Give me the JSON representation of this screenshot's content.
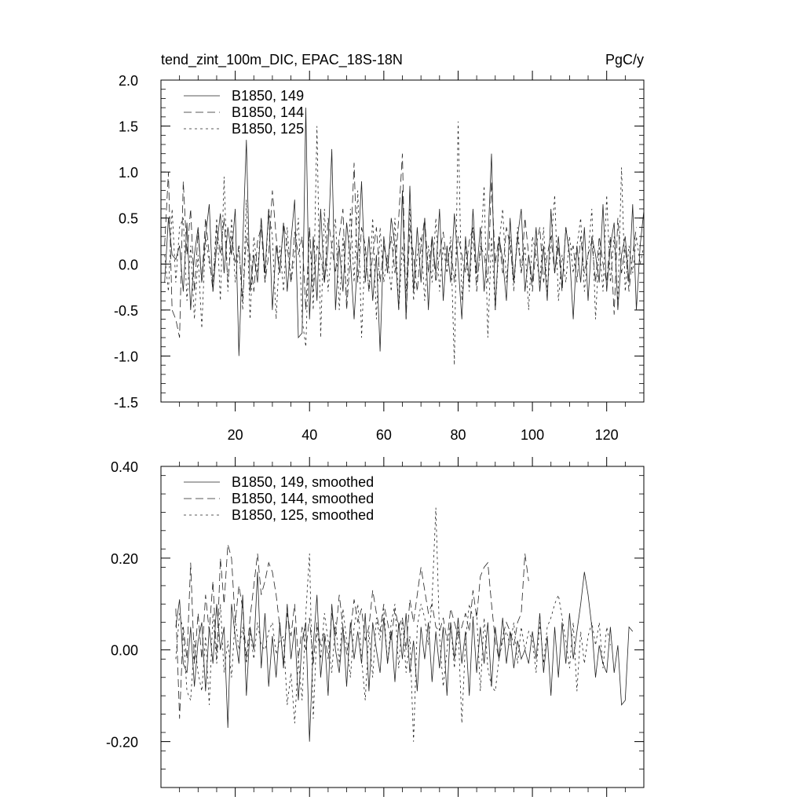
{
  "chart_data": [
    {
      "type": "line",
      "title": "tend_zint_100m_DIC, EPAC_18S-18N",
      "units": "PgC/y",
      "xlim": [
        0,
        130
      ],
      "ylim": [
        -1.5,
        2.0
      ],
      "x_ticks": [
        20,
        40,
        60,
        80,
        100,
        120
      ],
      "y_ticks": [
        -1.5,
        -1.0,
        -0.5,
        0.0,
        0.5,
        1.0,
        1.5,
        2.0
      ],
      "y_tick_labels": [
        "-1.5",
        "-1.0",
        "-0.5",
        "0.0",
        "0.5",
        "1.0",
        "1.5",
        "2.0"
      ],
      "grid": false,
      "legend": "top-left",
      "x_start": 1,
      "series": [
        {
          "name": "B1850, 149",
          "dash": "solid",
          "values": [
            -0.2,
            0.5,
            0.1,
            0.05,
            0.2,
            -0.3,
            0.45,
            -0.5,
            0.1,
            0.4,
            -0.2,
            0.3,
            0.65,
            -0.3,
            0.2,
            0.55,
            -0.1,
            0.4,
            0.1,
            0.6,
            -1.0,
            0.2,
            1.35,
            -0.3,
            0.1,
            -0.2,
            0.5,
            -0.1,
            0.6,
            -0.5,
            0.2,
            -0.1,
            0.45,
            -0.3,
            0.25,
            0.7,
            -0.8,
            -0.75,
            1.7,
            -0.6,
            0.3,
            -0.4,
            0.6,
            -0.2,
            0.2,
            1.25,
            -0.5,
            0.2,
            -0.3,
            0.45,
            0.05,
            -0.6,
            0.1,
            0.9,
            -0.2,
            0.3,
            -0.4,
            0.1,
            -0.95,
            0.3,
            -0.1,
            0.5,
            0.2,
            -0.5,
            0.8,
            -0.6,
            0.85,
            -0.3,
            0.4,
            -0.2,
            0.5,
            -0.5,
            0.3,
            -0.1,
            0.6,
            -0.4,
            0.2,
            -0.2,
            0.55,
            0.0,
            -0.6,
            0.3,
            -0.2,
            0.6,
            -0.1,
            0.4,
            -0.3,
            0.2,
            1.2,
            -0.5,
            0.3,
            0.05,
            -0.4,
            0.5,
            -0.2,
            0.3,
            0.6,
            -0.3,
            0.1,
            -0.2,
            0.4,
            -0.3,
            0.2,
            -0.4,
            0.6,
            -0.1,
            0.3,
            -0.25,
            0.4,
            0.1,
            -0.6,
            0.2,
            -0.2,
            0.4,
            -0.4,
            0.3,
            0.1,
            -0.2,
            0.65,
            -0.3,
            0.2,
            0.45,
            -0.5,
            0.1,
            0.3,
            -0.2,
            0.65,
            -0.5,
            0.2,
            0.58
          ]
        },
        {
          "name": "B1850, 144",
          "dash": "long-dash",
          "values": [
            0.2,
            1.0,
            -0.5,
            -0.6,
            -0.8,
            0.9,
            0.1,
            0.6,
            -0.3,
            0.35,
            -0.2,
            0.5,
            0.1,
            -0.3,
            0.4,
            0.1,
            0.5,
            -0.2,
            0.3,
            0.0,
            0.2,
            -0.4,
            0.3,
            0.1,
            -0.3,
            0.25,
            0.4,
            -0.2,
            0.1,
            0.8,
            0.3,
            -0.1,
            0.45,
            0.2,
            -0.2,
            0.35,
            0.1,
            0.3,
            -0.5,
            0.4,
            -0.3,
            0.2,
            0.1,
            -0.2,
            0.5,
            0.2,
            -0.1,
            0.3,
            0.6,
            -0.5,
            0.1,
            1.1,
            -0.2,
            0.4,
            0.2,
            -0.3,
            0.1,
            0.4,
            -0.2,
            0.2,
            0.0,
            0.3,
            -0.1,
            0.5,
            1.2,
            -0.6,
            0.4,
            0.1,
            -0.3,
            0.2,
            0.5,
            -0.1,
            0.3,
            -0.2,
            0.1,
            0.35,
            0.0,
            0.2,
            -0.2,
            0.3,
            0.1,
            -0.1,
            0.25,
            0.4,
            -0.3,
            0.2,
            0.1,
            -0.2,
            0.9,
            0.0,
            0.3,
            -0.1,
            0.4,
            0.2,
            -0.2,
            0.3,
            -0.1,
            0.5,
            0.1,
            -0.3,
            0.2,
            0.4,
            -0.2,
            0.1,
            0.3,
            -0.1,
            0.2,
            -0.3,
            0.4,
            0.1,
            0.2,
            -0.2,
            0.3,
            -0.1,
            0.1,
            0.25,
            -0.2,
            0.3,
            0.0,
            -0.2,
            0.3,
            -0.55,
            0.5,
            -0.1,
            0.2,
            -0.3,
            0.1,
            0.4
          ]
        },
        {
          "name": "B1850, 125",
          "dash": "short-dash",
          "values": [
            0.1,
            -0.3,
            0.6,
            -0.2,
            0.4,
            0.5,
            -0.4,
            0.2,
            -0.6,
            0.1,
            -0.7,
            0.3,
            0.0,
            -0.2,
            0.5,
            -0.4,
            0.95,
            -0.3,
            0.5,
            -0.2,
            0.2,
            -0.5,
            0.7,
            -0.6,
            0.3,
            -0.1,
            0.5,
            -0.2,
            0.6,
            0.3,
            -0.6,
            0.2,
            -0.3,
            0.4,
            -0.2,
            0.1,
            0.5,
            -0.6,
            -0.9,
            0.4,
            -0.5,
            1.5,
            -0.8,
            0.6,
            -0.3,
            0.2,
            0.5,
            -0.5,
            0.3,
            -0.4,
            0.6,
            -0.2,
            0.8,
            -0.8,
            0.2,
            -0.3,
            0.5,
            -0.6,
            0.4,
            -0.2,
            0.1,
            -0.3,
            0.5,
            -0.5,
            0.2,
            -0.3,
            0.6,
            -0.4,
            0.1,
            0.3,
            -0.4,
            0.2,
            -0.2,
            0.5,
            -0.3,
            0.2,
            -0.1,
            0.3,
            -1.1,
            1.55,
            -0.4,
            0.2,
            -0.3,
            0.4,
            -0.2,
            0.1,
            0.85,
            -0.8,
            0.3,
            -0.5,
            0.2,
            0.6,
            -0.2,
            0.3,
            -0.3,
            0.4,
            -0.1,
            0.2,
            -0.5,
            0.3,
            0.1,
            -0.2,
            0.4,
            -0.3,
            0.2,
            0.75,
            -0.4,
            0.1,
            -0.2,
            0.3,
            -0.1,
            0.2,
            0.5,
            -0.3,
            0.1,
            0.6,
            -0.6,
            0.2,
            -0.3,
            0.75,
            -0.2,
            0.3,
            -0.4,
            1.05,
            -0.3,
            0.2,
            -0.1,
            0.3,
            0.0,
            0.2
          ]
        }
      ]
    },
    {
      "type": "line",
      "title": "",
      "xlim": [
        0,
        130
      ],
      "ylim": [
        -0.3,
        0.4
      ],
      "x_ticks": [
        20,
        40,
        60,
        80,
        100,
        120
      ],
      "y_ticks": [
        -0.2,
        0.0,
        0.2,
        0.4
      ],
      "y_tick_labels": [
        "-0.20",
        "0.00",
        "0.20",
        "0.40"
      ],
      "grid": false,
      "legend": "top-left",
      "x_start": 4,
      "series": [
        {
          "name": "B1850, 149, smoothed",
          "dash": "solid",
          "values": [
            0.05,
            0.11,
            -0.03,
            -0.05,
            0.05,
            -0.08,
            0.02,
            0.06,
            -0.09,
            0.05,
            -0.03,
            0.1,
            0.0,
            0.05,
            -0.17,
            0.1,
            0.03,
            -0.03,
            0.12,
            -0.1,
            0.05,
            0.0,
            0.17,
            -0.04,
            0.08,
            -0.08,
            0.03,
            -0.06,
            0.06,
            -0.04,
            0.1,
            -0.02,
            0.05,
            -0.11,
            0.02,
            0.06,
            -0.2,
            0.01,
            0.12,
            -0.06,
            0.03,
            -0.1,
            0.1,
            0.0,
            -0.05,
            0.05,
            -0.08,
            0.06,
            -0.02,
            0.04,
            -0.03,
            0.08,
            -0.09,
            0.06,
            0.0,
            -0.05,
            0.07,
            -0.03,
            0.04,
            -0.07,
            0.06,
            -0.02,
            0.08,
            -0.05,
            0.02,
            -0.09,
            0.05,
            -0.02,
            0.06,
            -0.07,
            0.04,
            -0.04,
            0.05,
            -0.1,
            0.06,
            -0.02,
            0.07,
            -0.03,
            0.04,
            -0.1,
            0.07,
            -0.05,
            0.05,
            -0.03,
            0.06,
            -0.08,
            0.05,
            -0.02,
            0.07,
            -0.03,
            0.04,
            -0.04,
            0.02,
            -0.02,
            0.0,
            -0.03,
            0.04,
            -0.02,
            0.08,
            -0.05,
            0.03,
            -0.1,
            0.05,
            -0.06,
            0.06,
            -0.03,
            0.08,
            -0.02,
            0.04,
            0.1,
            0.17,
            0.12,
            0.05,
            -0.06,
            0.01,
            -0.03,
            -0.05,
            0.05,
            -0.05,
            0.01,
            -0.12,
            -0.11,
            0.05,
            0.04
          ]
        },
        {
          "name": "B1850, 144, smoothed",
          "dash": "long-dash",
          "values": [
            0.09,
            -0.15,
            0.05,
            -0.02,
            0.19,
            -0.03,
            0.08,
            -0.02,
            0.12,
            0.04,
            0.15,
            -0.02,
            0.2,
            0.1,
            0.23,
            0.2,
            0.06,
            0.14,
            0.09,
            -0.02,
            0.07,
            0.14,
            0.21,
            0.12,
            0.15,
            0.19,
            0.17,
            0.12,
            0.05,
            -0.03,
            0.08,
            0.03,
            0.1,
            -0.02,
            0.05,
            0.0,
            0.07,
            -0.03,
            0.06,
            0.01,
            0.04,
            -0.02,
            0.08,
            0.03,
            0.12,
            0.05,
            -0.01,
            0.04,
            0.11,
            0.06,
            0.09,
            0.02,
            0.05,
            0.13,
            0.08,
            0.04,
            0.1,
            0.06,
            0.02,
            0.09,
            0.05,
            0.07,
            0.0,
            0.11,
            0.06,
            0.12,
            0.18,
            0.13,
            0.08,
            0.1,
            0.05,
            0.04,
            0.07,
            0.02,
            0.09,
            0.06,
            0.03,
            0.05,
            0.08,
            0.04,
            0.13,
            0.07,
            0.16,
            0.18,
            0.19,
            0.1,
            0.02,
            -0.02,
            0.03,
            0.06,
            0.04,
            0.01,
            0.06,
            0.08,
            0.21,
            0.15
          ]
        },
        {
          "name": "B1850, 125, smoothed",
          "dash": "short-dash",
          "values": [
            -0.02,
            0.08,
            0.04,
            -0.09,
            -0.11,
            0.02,
            -0.05,
            -0.09,
            0.03,
            -0.12,
            0.08,
            -0.03,
            0.1,
            -0.05,
            0.02,
            -0.06,
            0.07,
            0.0,
            0.05,
            -0.03,
            0.04,
            -0.02,
            0.06,
            0.01,
            0.0,
            0.04,
            0.06,
            -0.01,
            0.02,
            0.03,
            -0.12,
            -0.05,
            -0.16,
            -0.02,
            -0.11,
            0.08,
            0.21,
            -0.15,
            0.05,
            -0.02,
            0.08,
            0.02,
            -0.05,
            0.06,
            -0.03,
            0.09,
            0.02,
            -0.06,
            0.05,
            0.1,
            -0.02,
            -0.11,
            0.04,
            -0.06,
            0.07,
            0.02,
            0.09,
            -0.03,
            0.06,
            0.1,
            -0.04,
            0.07,
            -0.05,
            0.03,
            -0.2,
            0.05,
            0.1,
            0.07,
            0.01,
            0.11,
            0.31,
            0.03,
            -0.08,
            0.0,
            0.06,
            -0.04,
            0.05,
            -0.16,
            0.02,
            0.1,
            0.07,
            0.08,
            -0.09,
            0.07,
            -0.04,
            -0.08,
            -0.09,
            -0.02,
            0.02,
            0.04,
            0.01,
            0.06,
            -0.03,
            0.05,
            0.0,
            0.04,
            0.02,
            -0.05,
            0.06,
            -0.03,
            0.05,
            0.07,
            0.1,
            0.12,
            0.07,
            0.02,
            -0.04,
            0.06,
            -0.09,
            0.04,
            -0.03,
            0.03,
            0.06,
            0.01,
            0.06,
            -0.04,
            0.05,
            0.01
          ]
        }
      ]
    }
  ]
}
